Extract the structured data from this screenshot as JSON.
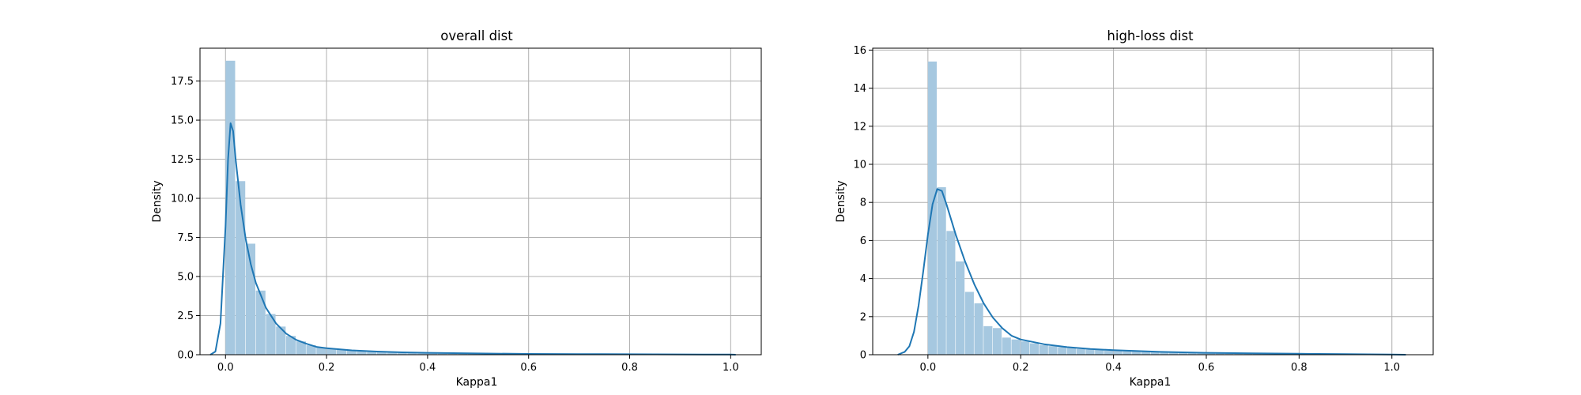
{
  "chart_data": [
    {
      "type": "histogram",
      "title": "overall dist",
      "xlabel": "Kappa1",
      "ylabel": "Density",
      "xlim": [
        -0.0505,
        1.0605
      ],
      "ylim": [
        0,
        19.6
      ],
      "xticks": [
        0.0,
        0.2,
        0.4,
        0.6,
        0.8,
        1.0
      ],
      "xtick_labels": [
        "0.0",
        "0.2",
        "0.4",
        "0.6",
        "0.8",
        "1.0"
      ],
      "yticks": [
        0.0,
        2.5,
        5.0,
        7.5,
        10.0,
        12.5,
        15.0,
        17.5
      ],
      "ytick_labels": [
        "0.0",
        "2.5",
        "5.0",
        "7.5",
        "10.0",
        "12.5",
        "15.0",
        "17.5"
      ],
      "grid": true,
      "bar_color": "#a6c8e0",
      "line_color": "#1f77b4",
      "histogram": {
        "bin_edges": [
          0.0,
          0.02,
          0.04,
          0.06,
          0.08,
          0.1,
          0.12,
          0.14,
          0.16,
          0.18,
          0.2,
          0.22,
          0.24,
          0.26,
          0.28,
          0.3,
          0.32,
          0.34,
          0.36,
          0.38,
          0.4,
          0.42,
          0.44,
          0.46,
          0.48,
          0.5,
          0.52,
          0.54,
          0.56,
          0.58,
          0.6,
          0.62,
          0.64,
          0.66,
          0.68,
          0.7,
          0.72,
          0.74,
          0.76,
          0.78,
          0.8,
          0.82,
          0.84,
          0.86,
          0.88,
          0.9,
          0.92,
          0.94,
          0.96,
          0.98,
          1.0
        ],
        "density": [
          18.8,
          11.1,
          7.1,
          4.1,
          2.6,
          1.8,
          1.2,
          0.85,
          0.6,
          0.45,
          0.4,
          0.33,
          0.27,
          0.22,
          0.18,
          0.15,
          0.13,
          0.12,
          0.1,
          0.09,
          0.08,
          0.07,
          0.06,
          0.06,
          0.05,
          0.05,
          0.04,
          0.04,
          0.04,
          0.03,
          0.03,
          0.03,
          0.03,
          0.02,
          0.02,
          0.02,
          0.02,
          0.02,
          0.02,
          0.02,
          0.02,
          0.01,
          0.01,
          0.01,
          0.01,
          0.01,
          0.01,
          0.01,
          0.01,
          0.01
        ]
      },
      "kde": {
        "x": [
          -0.03,
          -0.02,
          -0.01,
          0.0,
          0.005,
          0.01,
          0.015,
          0.02,
          0.03,
          0.04,
          0.05,
          0.06,
          0.08,
          0.1,
          0.12,
          0.14,
          0.16,
          0.18,
          0.2,
          0.25,
          0.3,
          0.35,
          0.4,
          0.5,
          0.6,
          0.7,
          0.8,
          0.9,
          1.0,
          1.01
        ],
        "y": [
          0.0,
          0.2,
          2.0,
          8.2,
          12.5,
          14.8,
          14.3,
          12.5,
          9.6,
          7.4,
          5.8,
          4.6,
          3.0,
          2.0,
          1.35,
          0.95,
          0.7,
          0.5,
          0.42,
          0.28,
          0.2,
          0.15,
          0.12,
          0.08,
          0.05,
          0.04,
          0.03,
          0.02,
          0.01,
          0.0
        ]
      }
    },
    {
      "type": "histogram",
      "title": "high-loss dist",
      "xlabel": "Kappa1",
      "ylabel": "Density",
      "xlim": [
        -0.119,
        1.089
      ],
      "ylim": [
        0,
        16.1
      ],
      "xticks": [
        0.0,
        0.2,
        0.4,
        0.6,
        0.8,
        1.0
      ],
      "xtick_labels": [
        "0.0",
        "0.2",
        "0.4",
        "0.6",
        "0.8",
        "1.0"
      ],
      "yticks": [
        0,
        2,
        4,
        6,
        8,
        10,
        12,
        14,
        16
      ],
      "ytick_labels": [
        "0",
        "2",
        "4",
        "6",
        "8",
        "10",
        "12",
        "14",
        "16"
      ],
      "grid": true,
      "bar_color": "#a6c8e0",
      "line_color": "#1f77b4",
      "histogram": {
        "bin_edges": [
          0.0,
          0.02,
          0.04,
          0.06,
          0.08,
          0.1,
          0.12,
          0.14,
          0.16,
          0.18,
          0.2,
          0.22,
          0.24,
          0.26,
          0.28,
          0.3,
          0.32,
          0.34,
          0.36,
          0.38,
          0.4,
          0.42,
          0.44,
          0.46,
          0.48,
          0.5,
          0.52,
          0.54,
          0.56,
          0.58,
          0.6,
          0.62,
          0.64,
          0.66,
          0.68,
          0.7,
          0.72,
          0.74,
          0.76,
          0.78,
          0.8,
          0.82,
          0.84,
          0.86,
          0.88,
          0.9,
          0.92,
          0.94,
          0.96,
          0.98,
          1.0
        ],
        "density": [
          15.4,
          8.8,
          6.5,
          4.9,
          3.3,
          2.7,
          1.5,
          1.4,
          0.9,
          0.8,
          0.7,
          0.6,
          0.5,
          0.45,
          0.4,
          0.35,
          0.3,
          0.27,
          0.25,
          0.22,
          0.2,
          0.18,
          0.17,
          0.15,
          0.14,
          0.13,
          0.12,
          0.11,
          0.1,
          0.09,
          0.08,
          0.08,
          0.07,
          0.06,
          0.06,
          0.05,
          0.05,
          0.04,
          0.04,
          0.04,
          0.03,
          0.03,
          0.03,
          0.02,
          0.02,
          0.02,
          0.02,
          0.01,
          0.01,
          0.01
        ]
      },
      "kde": {
        "x": [
          -0.065,
          -0.05,
          -0.04,
          -0.03,
          -0.02,
          -0.01,
          0.0,
          0.01,
          0.02,
          0.03,
          0.04,
          0.06,
          0.08,
          0.1,
          0.12,
          0.14,
          0.16,
          0.18,
          0.2,
          0.25,
          0.3,
          0.35,
          0.4,
          0.5,
          0.6,
          0.7,
          0.8,
          0.9,
          1.0,
          1.03
        ],
        "y": [
          0.0,
          0.15,
          0.45,
          1.2,
          2.6,
          4.4,
          6.3,
          7.9,
          8.7,
          8.6,
          7.9,
          6.3,
          4.9,
          3.7,
          2.7,
          1.95,
          1.4,
          1.0,
          0.8,
          0.55,
          0.4,
          0.3,
          0.24,
          0.15,
          0.1,
          0.07,
          0.05,
          0.03,
          0.01,
          0.0
        ]
      }
    }
  ]
}
